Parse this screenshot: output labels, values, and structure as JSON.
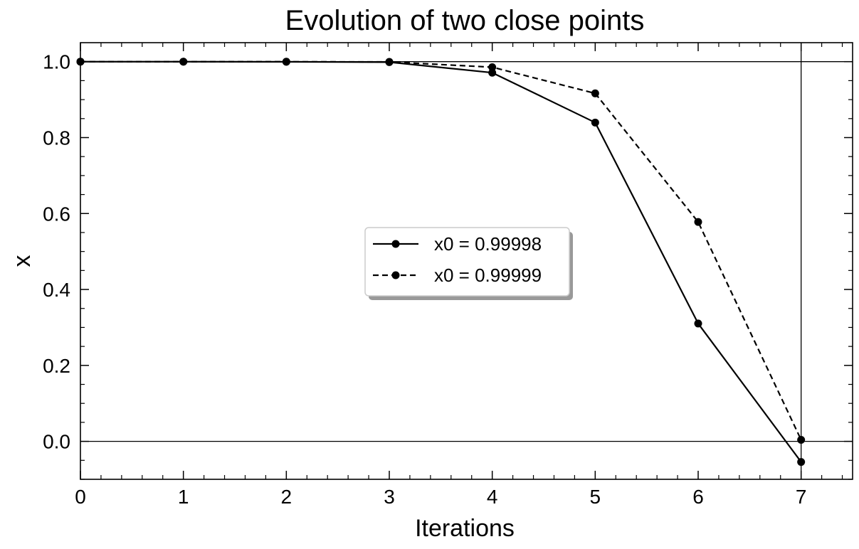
{
  "chart_data": {
    "type": "line",
    "title": "Evolution of two close points",
    "xlabel": "Iterations",
    "ylabel": "x",
    "xlim": [
      0,
      7.5
    ],
    "ylim": [
      -0.1,
      1.05
    ],
    "xticks": [
      0,
      1,
      2,
      3,
      4,
      5,
      6,
      7
    ],
    "xtick_labels": [
      "0",
      "1",
      "2",
      "3",
      "4",
      "5",
      "6",
      "7"
    ],
    "yticks": [
      0.0,
      0.2,
      0.4,
      0.6,
      0.8,
      1.0
    ],
    "ytick_labels": [
      "0.0",
      "0.2",
      "0.4",
      "0.6",
      "0.8",
      "1.0"
    ],
    "reference_lines": {
      "horizontal": [
        0.0,
        1.0
      ],
      "vertical": [
        7
      ]
    },
    "grid": false,
    "legend_position": "center",
    "x": [
      0,
      1,
      2,
      3,
      4,
      5,
      6,
      7
    ],
    "series": [
      {
        "name": "x0 = 0.99998",
        "line_style": "solid",
        "color": "#000000",
        "values": [
          0.99998,
          0.99992,
          0.99968,
          0.99872,
          0.97094,
          0.83963,
          0.31031,
          -0.05429
        ]
      },
      {
        "name": "x0 = 0.99999",
        "line_style": "dashed",
        "color": "#000000",
        "values": [
          0.99999,
          0.99996,
          0.99984,
          0.99936,
          0.98542,
          0.91646,
          0.57775,
          0.00393
        ]
      }
    ]
  }
}
